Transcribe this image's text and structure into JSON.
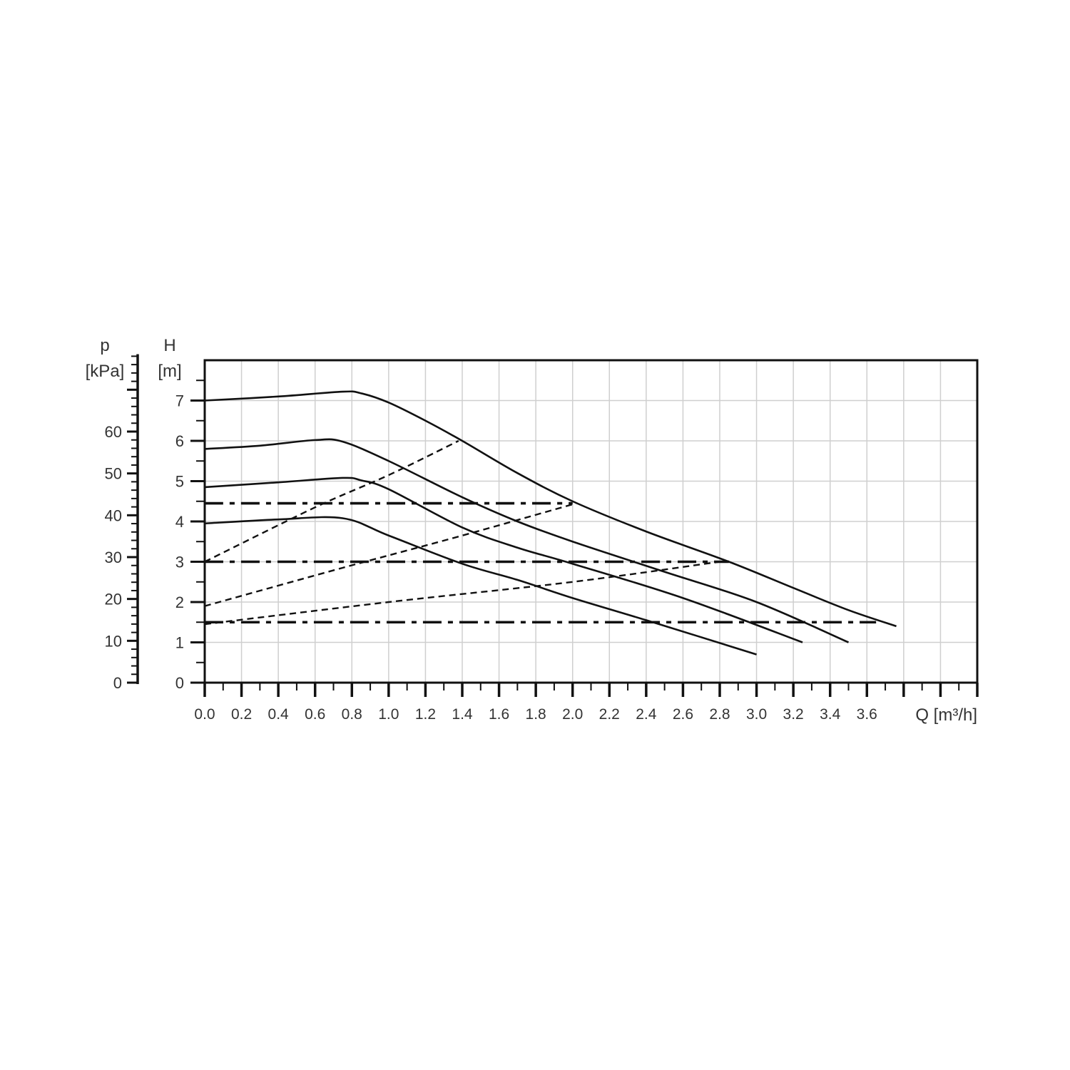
{
  "chart_data": {
    "type": "line",
    "title": "",
    "xlabel": "Q [m³/h]",
    "ylabel": "H [m]",
    "y2label_symbol": "p",
    "y2label_unit": "[kPa]",
    "ylabel_symbol": "H",
    "ylabel_unit": "[m]",
    "xlim": [
      0,
      4.2
    ],
    "ylim": [
      0,
      8
    ],
    "y2lim_kpa": [
      0,
      78.5
    ],
    "grid": true,
    "x_ticks": [
      "0.0",
      "0.2",
      "0.4",
      "0.6",
      "0.8",
      "1.0",
      "1.2",
      "1.4",
      "1.6",
      "1.8",
      "2.0",
      "2.2",
      "2.4",
      "2.6",
      "2.8",
      "3.0",
      "3.2",
      "3.4",
      "3.6"
    ],
    "y_ticks": [
      "0",
      "1",
      "2",
      "3",
      "4",
      "5",
      "6",
      "7"
    ],
    "y2_ticks": [
      "0",
      "10",
      "20",
      "30",
      "40",
      "50",
      "60"
    ],
    "series": [
      {
        "style": "solid",
        "x": [
          0,
          0.4,
          0.75,
          0.85,
          1.0,
          1.2,
          1.4,
          1.7,
          2.0,
          2.4,
          2.85,
          3.2,
          3.5,
          3.76
        ],
        "y": [
          7.0,
          7.1,
          7.22,
          7.18,
          6.95,
          6.5,
          6.0,
          5.2,
          4.5,
          3.75,
          3.0,
          2.35,
          1.8,
          1.4
        ]
      },
      {
        "style": "solid",
        "x": [
          0,
          0.3,
          0.6,
          0.75,
          1.0,
          1.4,
          1.7,
          2.0,
          2.5,
          3.0,
          3.5
        ],
        "y": [
          5.8,
          5.88,
          6.02,
          5.98,
          5.5,
          4.6,
          4.0,
          3.5,
          2.75,
          2.0,
          1.0
        ]
      },
      {
        "style": "solid",
        "x": [
          0,
          0.4,
          0.75,
          0.85,
          1.0,
          1.4,
          1.7,
          2.0,
          2.6,
          3.25
        ],
        "y": [
          4.85,
          4.97,
          5.08,
          5.02,
          4.8,
          3.85,
          3.35,
          2.95,
          2.1,
          1.0
        ]
      },
      {
        "style": "solid",
        "x": [
          0,
          0.4,
          0.75,
          1.0,
          1.4,
          1.7,
          2.0,
          2.4,
          3.0
        ],
        "y": [
          3.95,
          4.05,
          4.08,
          3.65,
          2.95,
          2.55,
          2.1,
          1.55,
          0.7
        ]
      },
      {
        "style": "dashed",
        "x": [
          0,
          0.6,
          1.0,
          1.38
        ],
        "y": [
          3.0,
          4.35,
          5.15,
          6.0
        ]
      },
      {
        "style": "dashed",
        "x": [
          0,
          0.75,
          1.4,
          2.02
        ],
        "y": [
          1.9,
          2.85,
          3.65,
          4.45
        ]
      },
      {
        "style": "dashed",
        "x": [
          0,
          1.0,
          2.0,
          2.8
        ],
        "y": [
          1.45,
          2.0,
          2.5,
          3.0
        ]
      },
      {
        "style": "dashdot",
        "x": [
          0,
          2.0
        ],
        "y": [
          4.45,
          4.45
        ]
      },
      {
        "style": "dashdot",
        "x": [
          0,
          2.85
        ],
        "y": [
          3.0,
          3.0
        ]
      },
      {
        "style": "dashdot",
        "x": [
          0,
          3.65
        ],
        "y": [
          1.5,
          1.5
        ]
      }
    ]
  }
}
